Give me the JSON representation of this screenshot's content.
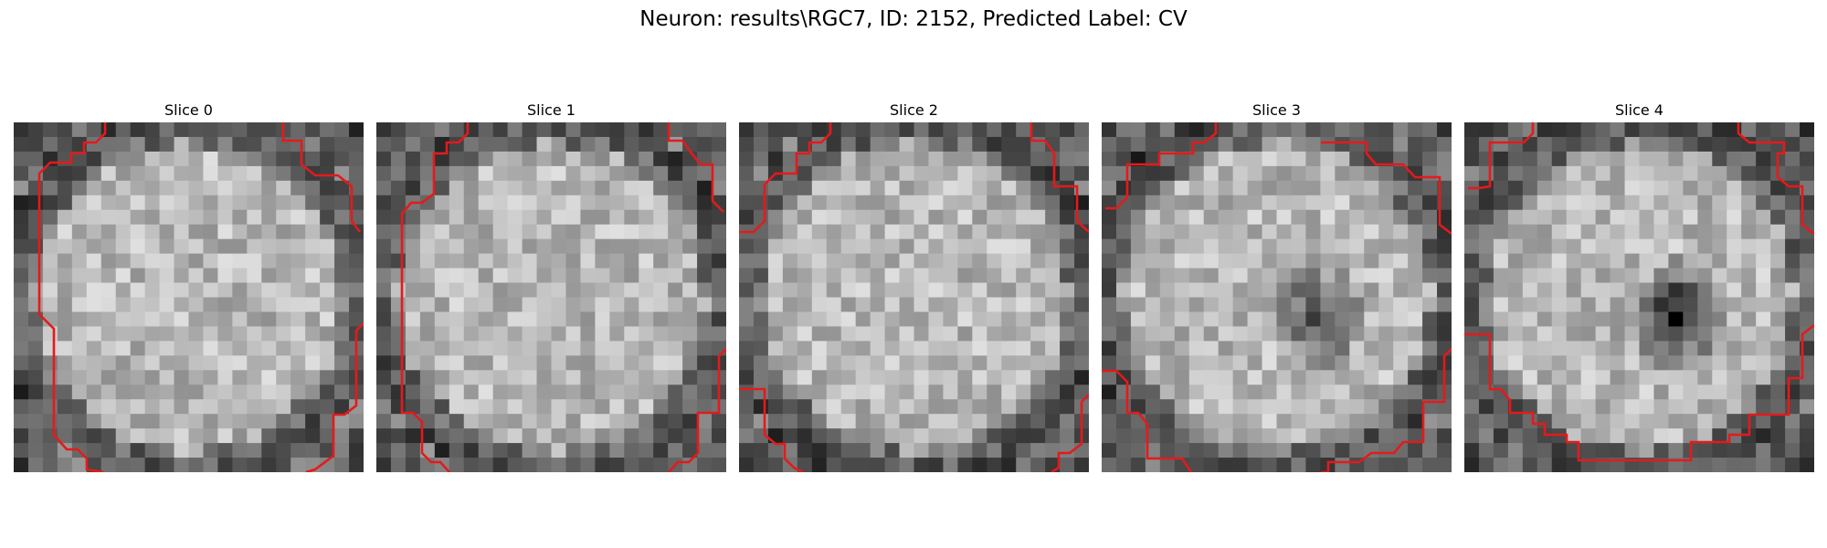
{
  "figure": {
    "title": "Neuron: results\\RGC7, ID: 2152, Predicted Label: CV"
  },
  "slices": [
    {
      "title": "Slice 0",
      "seed": 11,
      "dark_spot": null
    },
    {
      "title": "Slice 1",
      "seed": 23,
      "dark_spot": null
    },
    {
      "title": "Slice 2",
      "seed": 37,
      "dark_spot": null
    },
    {
      "title": "Slice 3",
      "seed": 41,
      "dark_spot": "center-right"
    },
    {
      "title": "Slice 4",
      "seed": 53,
      "dark_spot": "center-right"
    }
  ],
  "colors": {
    "contour": "#e41a1c",
    "image_cmap": "grayscale"
  }
}
